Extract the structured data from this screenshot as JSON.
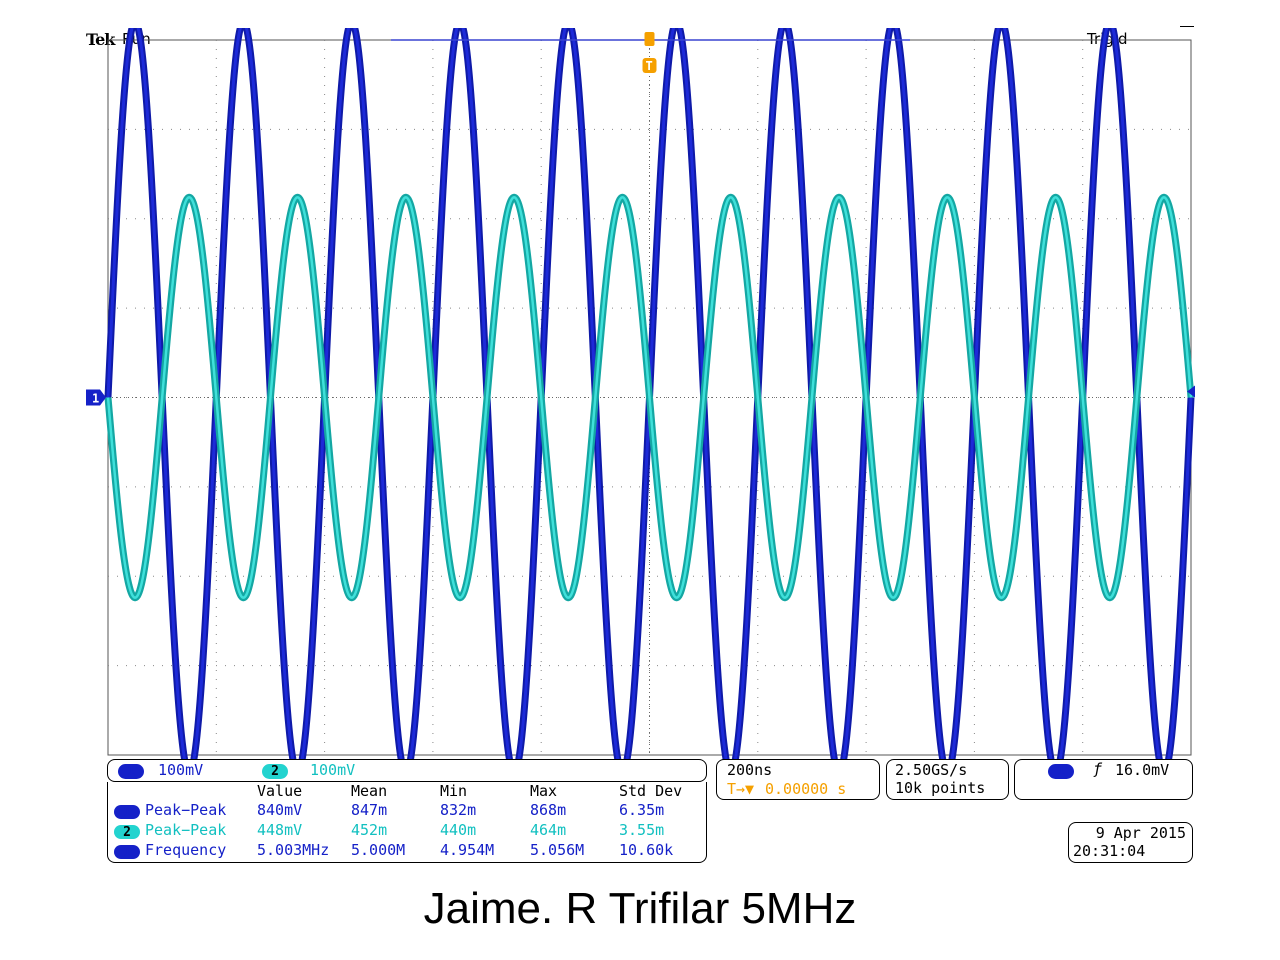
{
  "header": {
    "brand": "Tek",
    "run_state": "Run",
    "trigger_state": "Trig'd"
  },
  "markers": {
    "channel1_marker": "1",
    "trigger_marker": "T"
  },
  "channels": [
    {
      "name": "1",
      "scale": "100mV",
      "color": "#1521c8"
    },
    {
      "name": "2",
      "scale": "100mV",
      "color": "#23d3cf"
    }
  ],
  "timebase": {
    "scale": "200ns",
    "position": "0.00000 s",
    "position_icon": "T→▼"
  },
  "acquisition": {
    "sample_rate": "2.50GS/s",
    "record_length": "10k points"
  },
  "trigger": {
    "channel": "1",
    "slope_icon": "rising-edge",
    "slope_glyph": "ƒ",
    "level": "16.0mV"
  },
  "measurements": {
    "headers": [
      "Value",
      "Mean",
      "Min",
      "Max",
      "Std Dev"
    ],
    "rows": [
      {
        "channel": "1",
        "name": "Peak−Peak",
        "value": "840mV",
        "mean": "847m",
        "min": "832m",
        "max": "868m",
        "stddev": "6.35m"
      },
      {
        "channel": "2",
        "name": "Peak−Peak",
        "value": "448mV",
        "mean": "452m",
        "min": "440m",
        "max": "464m",
        "stddev": "3.55m"
      },
      {
        "channel": "1",
        "name": "Frequency",
        "value": "5.003MHz",
        "mean": "5.000M",
        "min": "4.954M",
        "max": "5.056M",
        "stddev": "10.60k"
      }
    ]
  },
  "datetime": {
    "date": "9 Apr 2015",
    "time": "20:31:04"
  },
  "caption": "Jaime. R Trifilar 5MHz",
  "colors": {
    "ch1": "#1521c8",
    "ch2": "#23d3cf",
    "trigger": "#f5a000",
    "grid": "#888888"
  }
}
